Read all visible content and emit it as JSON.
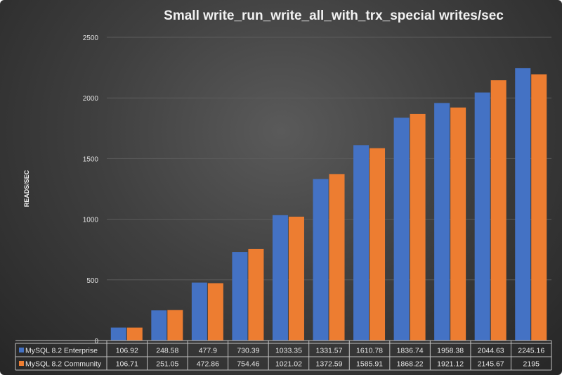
{
  "chart_data": {
    "type": "bar",
    "title": "Small  write_run_write_all_with_trx_special   writes/sec",
    "ylabel": "READS/SEC",
    "xlabel": "",
    "ylim": [
      0,
      2500
    ],
    "yticks": [
      0,
      500,
      1000,
      1500,
      2000,
      2500
    ],
    "grid": true,
    "legend": "data-table",
    "series": [
      {
        "name": "MySQL 8.2 Enterprise",
        "color": "#4472c4",
        "values": [
          106.92,
          248.58,
          477.9,
          730.39,
          1033.35,
          1331.57,
          1610.78,
          1836.74,
          1958.38,
          2044.63,
          2245.16
        ]
      },
      {
        "name": "MySQL 8.2 Community",
        "color": "#ed7d31",
        "values": [
          106.71,
          251.05,
          472.86,
          754.46,
          1021.02,
          1372.59,
          1585.91,
          1868.22,
          1921.12,
          2145.67,
          2195
        ]
      }
    ]
  }
}
